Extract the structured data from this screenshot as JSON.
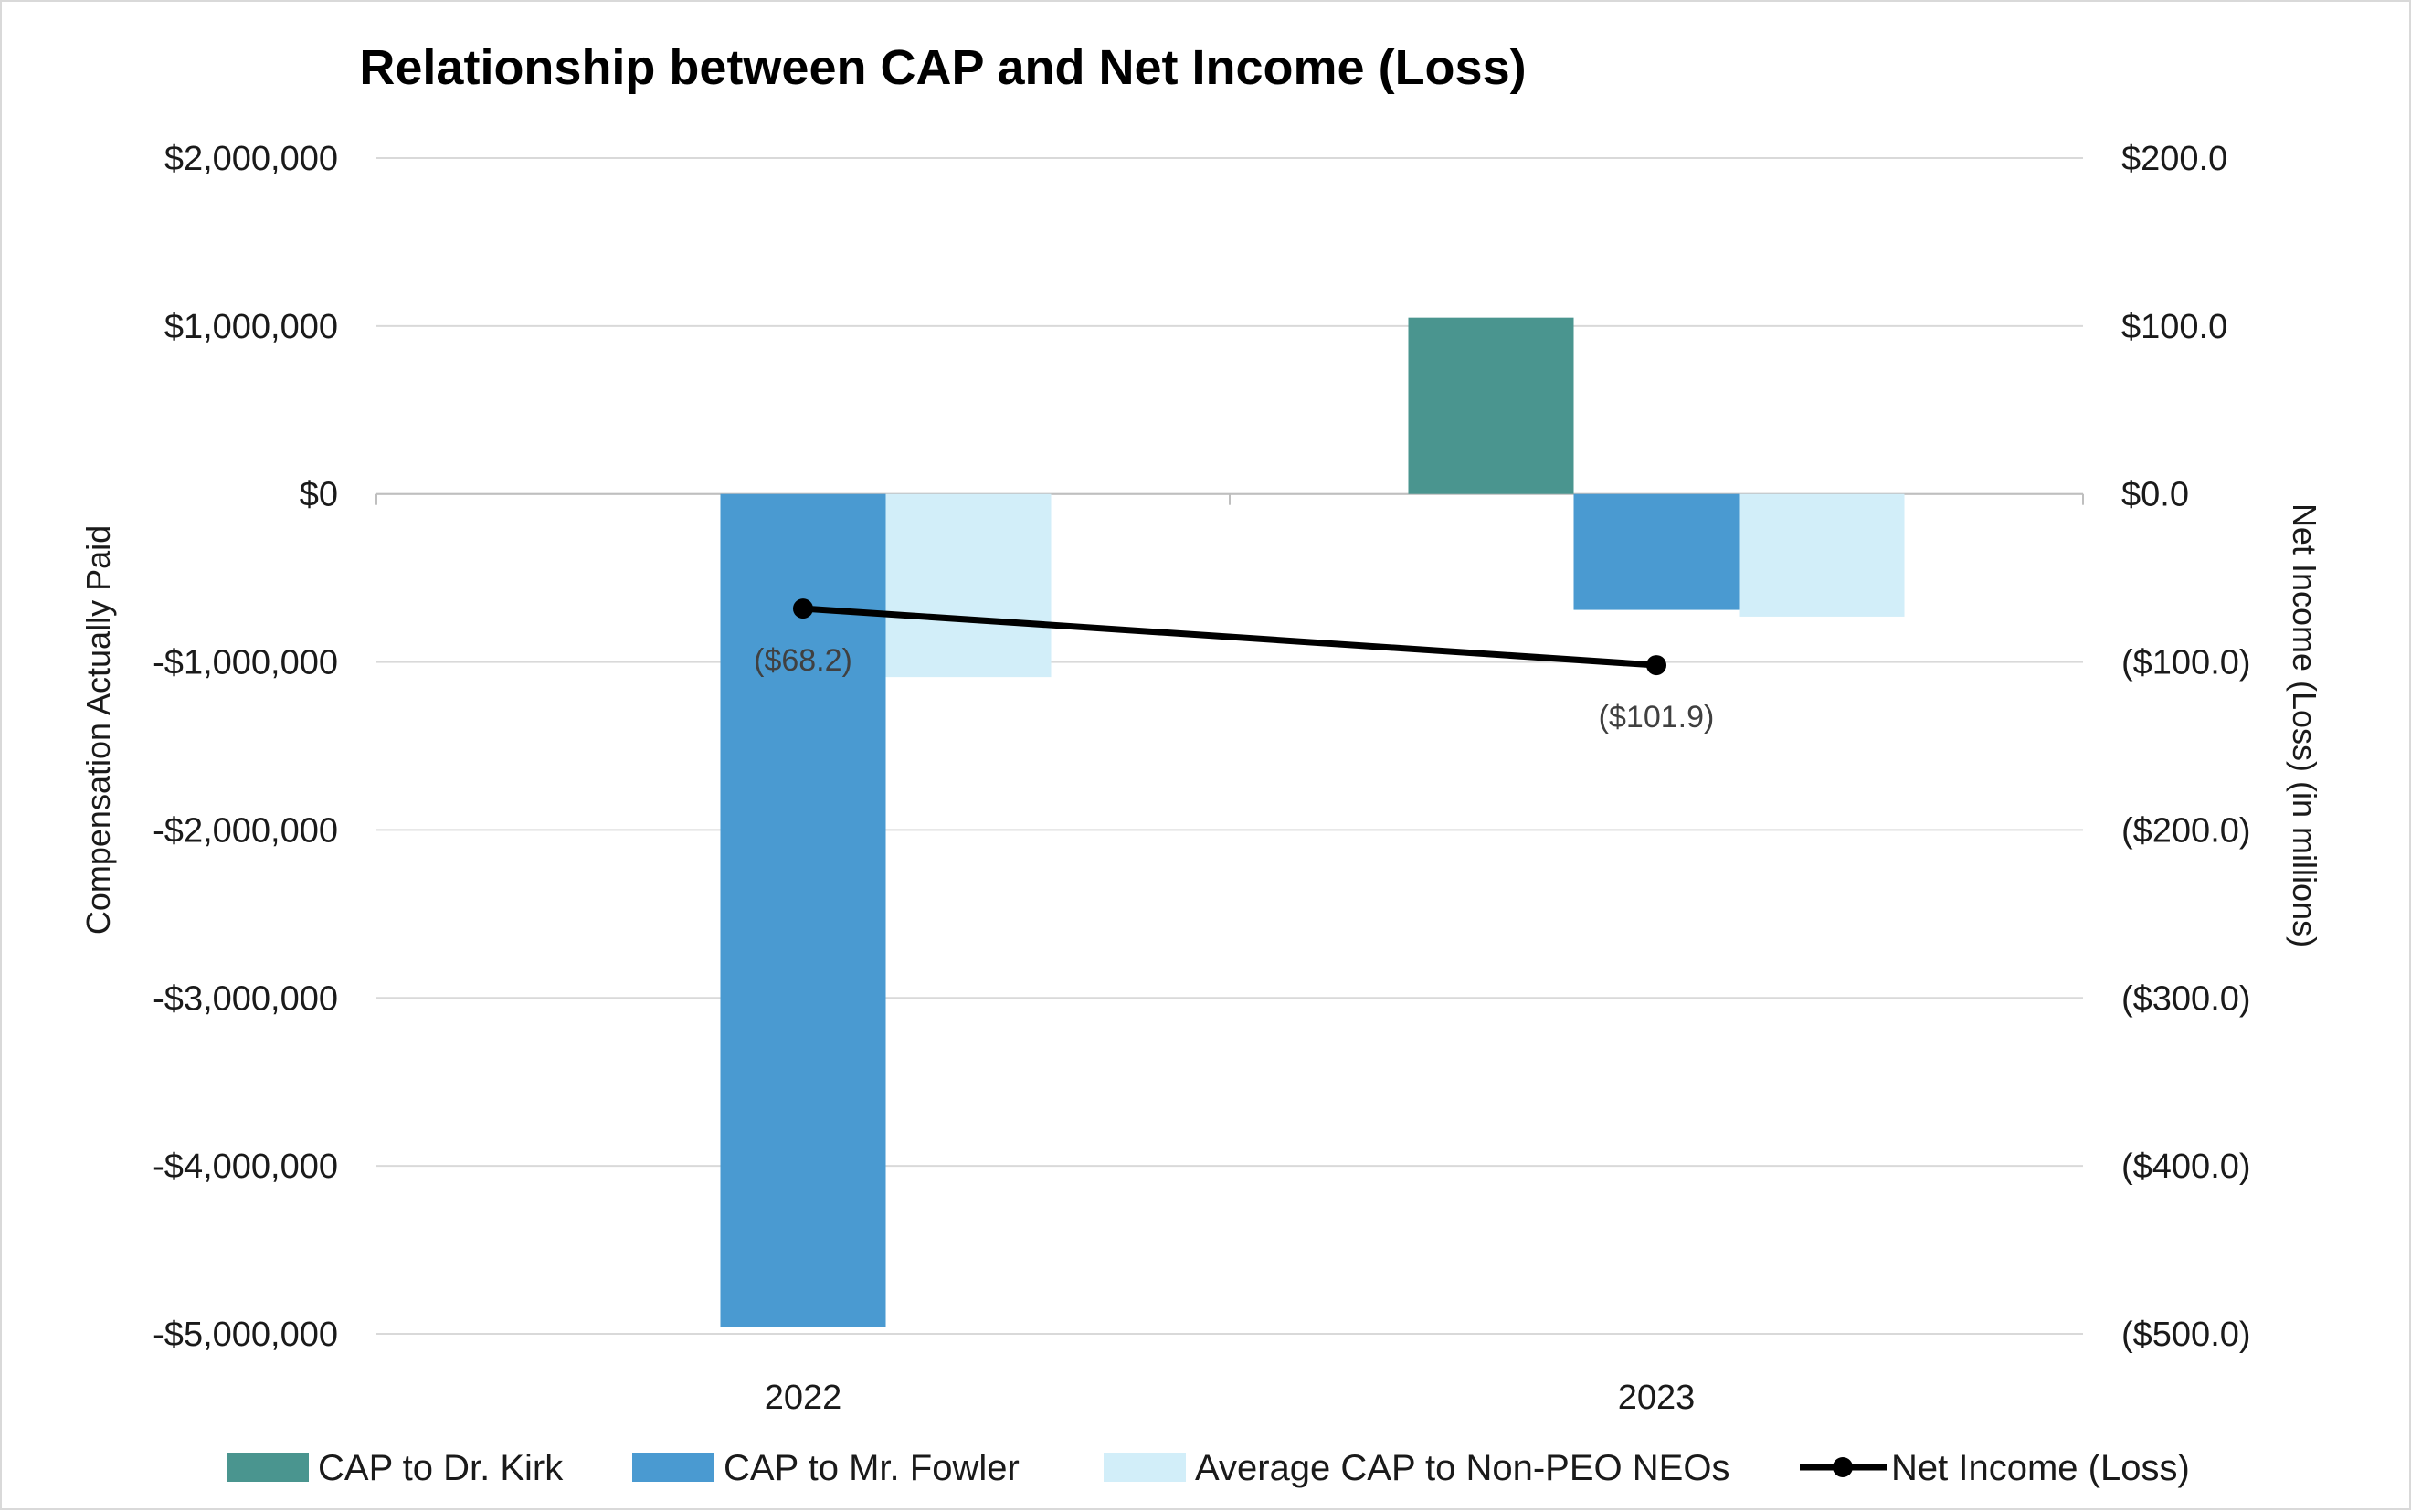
{
  "chart_data": {
    "type": "bar",
    "title": "Relationship between CAP and Net Income (Loss)",
    "categories": [
      "2022",
      "2023"
    ],
    "ylabel": "Compensation Actually Paid",
    "y2label": "Net Income (Loss) (in millions)",
    "ylim": [
      -5000000,
      2000000
    ],
    "y2lim": [
      -500,
      200
    ],
    "yticks": [
      {
        "value": 2000000,
        "label": "$2,000,000"
      },
      {
        "value": 1000000,
        "label": "$1,000,000"
      },
      {
        "value": 0,
        "label": "$0"
      },
      {
        "value": -1000000,
        "label": "-$1,000,000"
      },
      {
        "value": -2000000,
        "label": "-$2,000,000"
      },
      {
        "value": -3000000,
        "label": "-$3,000,000"
      },
      {
        "value": -4000000,
        "label": "-$4,000,000"
      },
      {
        "value": -5000000,
        "label": "-$5,000,000"
      }
    ],
    "y2ticks": [
      {
        "value": 200,
        "label": "$200.0"
      },
      {
        "value": 100,
        "label": "$100.0"
      },
      {
        "value": 0,
        "label": "$0.0"
      },
      {
        "value": -100,
        "label": "($100.0)"
      },
      {
        "value": -200,
        "label": "($200.0)"
      },
      {
        "value": -300,
        "label": "($300.0)"
      },
      {
        "value": -400,
        "label": "($400.0)"
      },
      {
        "value": -500,
        "label": "($500.0)"
      }
    ],
    "series": [
      {
        "name": "CAP to Dr. Kirk",
        "type": "bar",
        "axis": "left",
        "color": "#4a958f",
        "values": [
          null,
          1050000
        ]
      },
      {
        "name": "CAP to Mr. Fowler",
        "type": "bar",
        "axis": "left",
        "color": "#4a9ad1",
        "values": [
          -4960000,
          -690000
        ]
      },
      {
        "name": "Average CAP to Non-PEO NEOs",
        "type": "bar",
        "axis": "left",
        "color": "#d2eef9",
        "values": [
          -1090000,
          -730000
        ]
      },
      {
        "name": "Net Income (Loss)",
        "type": "line",
        "axis": "right",
        "color": "#000000",
        "values": [
          -68.2,
          -101.9
        ],
        "labels": [
          "($68.2)",
          "($101.9)"
        ]
      }
    ],
    "legend_position": "bottom",
    "grid": true
  }
}
